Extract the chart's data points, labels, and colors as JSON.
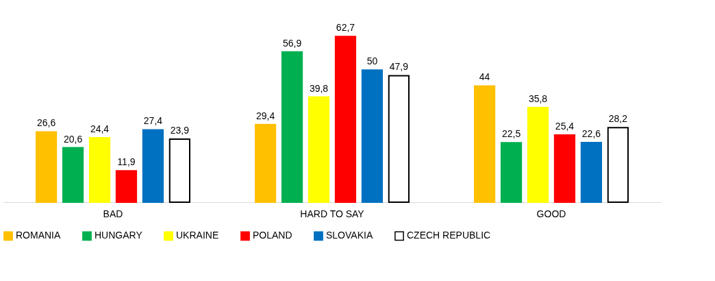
{
  "chart_data": {
    "type": "bar",
    "categories": [
      "BAD",
      "HARD TO SAY",
      "GOOD"
    ],
    "series": [
      {
        "name": "ROMANIA",
        "color": "#ffc000",
        "values": [
          26.6,
          29.4,
          44
        ],
        "value_labels": [
          "26,6",
          "29,4",
          "44"
        ]
      },
      {
        "name": "HUNGARY",
        "color": "#00b050",
        "values": [
          20.6,
          56.9,
          22.5
        ],
        "value_labels": [
          "20,6",
          "56,9",
          "22,5"
        ]
      },
      {
        "name": "UKRAINE",
        "color": "#ffff00",
        "values": [
          24.4,
          39.8,
          35.8
        ],
        "value_labels": [
          "24,4",
          "39,8",
          "35,8"
        ]
      },
      {
        "name": "POLAND",
        "color": "#ff0000",
        "values": [
          11.9,
          62.7,
          25.4
        ],
        "value_labels": [
          "11,9",
          "62,7",
          "25,4"
        ]
      },
      {
        "name": "SLOVAKIA",
        "color": "#0070c0",
        "values": [
          27.4,
          50,
          22.6
        ],
        "value_labels": [
          "27,4",
          "50",
          "22,6"
        ]
      },
      {
        "name": "CZECH REPUBLIC",
        "color": "#ffffff",
        "values": [
          23.9,
          47.9,
          28.2
        ],
        "value_labels": [
          "23,9",
          "47,9",
          "28,2"
        ]
      }
    ],
    "grid": false,
    "legend": "bottom"
  }
}
